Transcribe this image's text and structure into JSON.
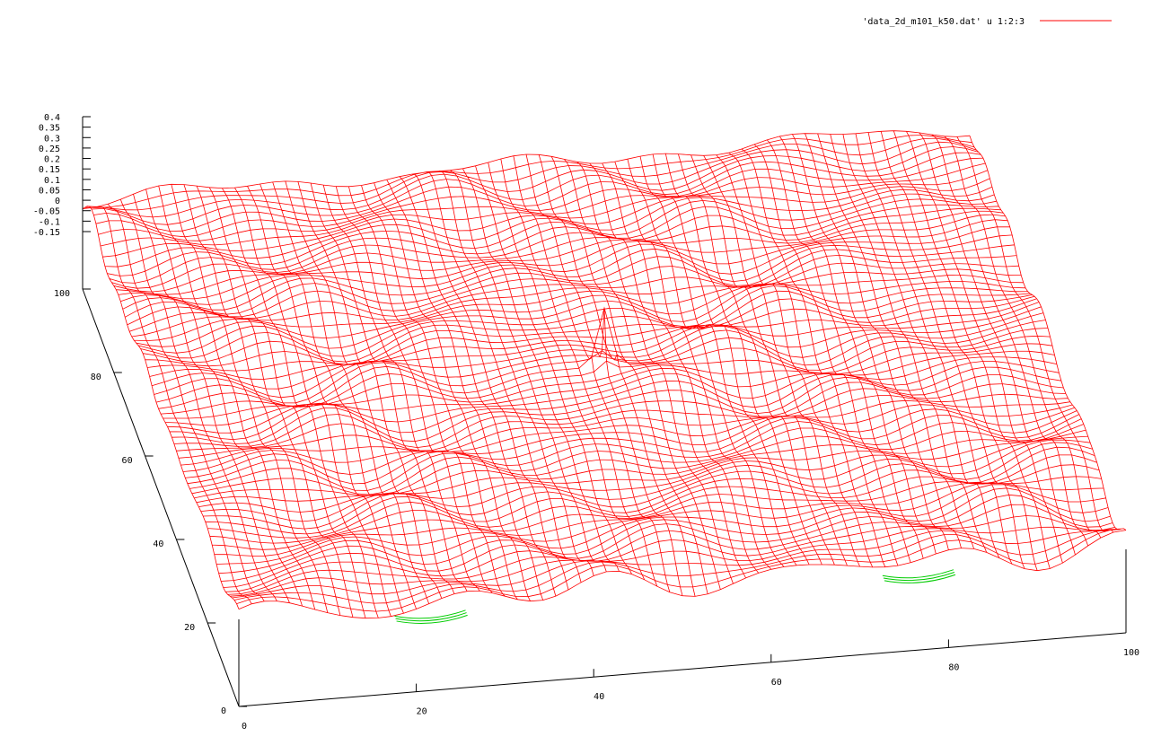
{
  "chart_data": {
    "type": "surface",
    "title": "",
    "legend": {
      "entries": [
        {
          "label": "'data_2d_m101_k50.dat' u 1:2:3",
          "color": "#ff0000"
        }
      ],
      "position": "top-right"
    },
    "x_axis": {
      "label": "",
      "range": [
        0,
        100
      ],
      "ticks": [
        "0",
        "20",
        "40",
        "60",
        "80",
        "100"
      ]
    },
    "y_axis": {
      "label": "",
      "range": [
        0,
        100
      ],
      "ticks": [
        "0",
        "20",
        "40",
        "60",
        "80",
        "100"
      ]
    },
    "z_axis": {
      "label": "",
      "range": [
        -0.15,
        0.4
      ],
      "ticks": [
        "0.4",
        "0.35",
        "0.3",
        "0.25",
        "0.2",
        "0.15",
        "0.1",
        "0.05",
        "0",
        "-0.05",
        "-0.1",
        "-0.15"
      ]
    },
    "mesh": {
      "grid_size": 101,
      "spike_at": [
        50,
        50
      ],
      "spike_height": 0.4,
      "surface_color": "#ff0000",
      "underside_color": "#00cc00"
    },
    "grid": false
  }
}
